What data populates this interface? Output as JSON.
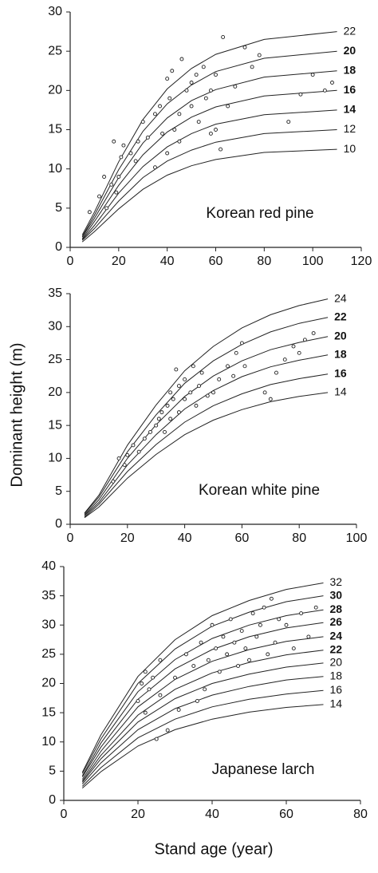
{
  "chart_data": [
    {
      "type": "scatter",
      "annotation": "Korean red pine",
      "xlim": [
        0,
        120
      ],
      "xticks": [
        0,
        20,
        40,
        60,
        80,
        100,
        120
      ],
      "ylim": [
        0,
        30
      ],
      "yticks": [
        0,
        5,
        10,
        15,
        20,
        25,
        30
      ],
      "points": {
        "x": [
          8,
          12,
          14,
          15,
          17,
          18,
          19,
          20,
          21,
          22,
          25,
          28,
          30,
          32,
          35,
          37,
          38,
          40,
          41,
          42,
          43,
          45,
          46,
          48,
          50,
          50,
          52,
          53,
          55,
          56,
          58,
          60,
          60,
          62,
          63,
          65,
          68,
          72,
          75,
          78,
          90,
          95,
          100,
          105,
          108,
          58,
          45,
          40,
          35,
          27
        ],
        "y": [
          4.5,
          6.5,
          9,
          5,
          8,
          13.5,
          7,
          9,
          11.5,
          13,
          12,
          13.5,
          16,
          14,
          17,
          18,
          14.5,
          21.5,
          19,
          22.5,
          15,
          17,
          24,
          20,
          21,
          18,
          22,
          16,
          23,
          19,
          20,
          22,
          15,
          12.5,
          26.8,
          18,
          20.5,
          25.5,
          23,
          24.5,
          16,
          19.5,
          22,
          20,
          21,
          14.5,
          13.5,
          12,
          10.2,
          11
        ]
      },
      "curve_x": [
        5,
        10,
        20,
        30,
        40,
        50,
        60,
        80,
        110
      ],
      "curves": [
        {
          "name": "22",
          "bold": false,
          "values": [
            1.6,
            4.5,
            10.9,
            16.3,
            20.2,
            22.8,
            24.6,
            26.5,
            27.5
          ]
        },
        {
          "name": "20",
          "bold": true,
          "values": [
            1.4,
            4.1,
            9.9,
            14.8,
            18.3,
            20.7,
            22.4,
            24.1,
            25
          ]
        },
        {
          "name": "18",
          "bold": true,
          "values": [
            1.3,
            3.7,
            8.9,
            13.3,
            16.5,
            18.7,
            20.1,
            21.7,
            22.5
          ]
        },
        {
          "name": "16",
          "bold": true,
          "values": [
            1.1,
            3.3,
            7.9,
            11.8,
            14.7,
            16.6,
            17.9,
            19.3,
            20
          ]
        },
        {
          "name": "14",
          "bold": true,
          "values": [
            1.0,
            2.8,
            6.9,
            10.3,
            12.8,
            14.5,
            15.7,
            16.9,
            17.5
          ]
        },
        {
          "name": "12",
          "bold": false,
          "values": [
            0.9,
            2.4,
            5.9,
            8.9,
            11.0,
            12.4,
            13.4,
            14.5,
            15
          ]
        },
        {
          "name": "10",
          "bold": false,
          "values": [
            0.7,
            2.0,
            4.9,
            7.4,
            9.2,
            10.4,
            11.2,
            12.1,
            12.5
          ]
        }
      ]
    },
    {
      "type": "scatter",
      "annotation": "Korean white pine",
      "y_label": "Dominant height (m)",
      "xlim": [
        0,
        100
      ],
      "xticks": [
        0,
        20,
        40,
        60,
        80,
        100
      ],
      "ylim": [
        0,
        35
      ],
      "yticks": [
        0,
        5,
        10,
        15,
        20,
        25,
        30,
        35
      ],
      "points": {
        "x": [
          15,
          17,
          19,
          20,
          22,
          24,
          26,
          28,
          30,
          31,
          32,
          33,
          34,
          35,
          35,
          36,
          37,
          38,
          38,
          40,
          40,
          42,
          43,
          44,
          45,
          46,
          48,
          50,
          52,
          55,
          57,
          58,
          60,
          61,
          68,
          70,
          72,
          75,
          78,
          80,
          82,
          85
        ],
        "y": [
          6.5,
          10,
          9,
          10.5,
          12,
          11,
          13,
          14,
          15,
          16,
          17,
          14,
          18,
          16,
          20,
          19,
          23.5,
          17,
          21,
          19,
          22,
          20,
          24,
          18,
          21,
          23,
          19.5,
          20,
          22,
          24,
          22.5,
          26,
          27.5,
          24,
          20,
          19,
          23,
          25,
          27,
          26,
          28,
          29
        ]
      },
      "curve_x": [
        5,
        10,
        20,
        30,
        40,
        50,
        60,
        70,
        80,
        90
      ],
      "curves": [
        {
          "name": "24",
          "bold": false,
          "values": [
            1.7,
            4.4,
            12.0,
            18.1,
            23.3,
            27.0,
            29.8,
            31.8,
            33.2,
            34.2
          ]
        },
        {
          "name": "22",
          "bold": true,
          "values": [
            1.6,
            4.1,
            11.0,
            16.6,
            21.4,
            24.8,
            27.3,
            29.2,
            30.5,
            31.4
          ]
        },
        {
          "name": "20",
          "bold": true,
          "values": [
            1.4,
            3.7,
            10.0,
            15.1,
            19.4,
            22.5,
            24.8,
            26.5,
            27.6,
            28.5
          ]
        },
        {
          "name": "18",
          "bold": true,
          "values": [
            1.3,
            3.3,
            9.0,
            13.6,
            17.5,
            20.3,
            22.4,
            23.9,
            24.9,
            25.7
          ]
        },
        {
          "name": "16",
          "bold": true,
          "values": [
            1.1,
            3.0,
            8.0,
            12.1,
            15.5,
            18.0,
            19.8,
            21.2,
            22.1,
            22.8
          ]
        },
        {
          "name": "14",
          "bold": false,
          "values": [
            1.0,
            2.6,
            7.0,
            10.6,
            13.6,
            15.8,
            17.4,
            18.6,
            19.4,
            20
          ]
        }
      ]
    },
    {
      "type": "scatter",
      "annotation": "Japanese larch",
      "x_label": "Stand age (year)",
      "xlim": [
        0,
        80
      ],
      "xticks": [
        0,
        20,
        40,
        60,
        80
      ],
      "ylim": [
        0,
        40
      ],
      "yticks": [
        0,
        5,
        10,
        15,
        20,
        25,
        30,
        35,
        40
      ],
      "points": {
        "x": [
          20,
          21,
          22,
          22,
          23,
          24,
          25,
          26,
          26,
          28,
          30,
          31,
          33,
          35,
          36,
          37,
          38,
          39,
          40,
          41,
          42,
          43,
          44,
          45,
          46,
          47,
          48,
          49,
          50,
          51,
          52,
          53,
          54,
          55,
          56,
          57,
          58,
          60,
          62,
          64,
          66,
          68
        ],
        "y": [
          17,
          20,
          15,
          22,
          19,
          21,
          10.5,
          18,
          24,
          12,
          21,
          15.5,
          25,
          23,
          17,
          27,
          19,
          24,
          30,
          26,
          22,
          28,
          25,
          31,
          27,
          23,
          29,
          26,
          24,
          32,
          28,
          30,
          33,
          25,
          34.5,
          27,
          31,
          30,
          26,
          32,
          28,
          33
        ]
      },
      "curve_x": [
        5,
        10,
        20,
        30,
        40,
        50,
        60,
        70
      ],
      "curves": [
        {
          "name": "32",
          "bold": false,
          "values": [
            4.8,
            11.2,
            21.2,
            27.5,
            31.6,
            34.2,
            36.1,
            37.2
          ]
        },
        {
          "name": "30",
          "bold": true,
          "values": [
            4.6,
            10.5,
            20.0,
            25.9,
            29.8,
            32.2,
            34.0,
            35
          ]
        },
        {
          "name": "28",
          "bold": true,
          "values": [
            4.2,
            9.8,
            18.6,
            24.1,
            27.7,
            30.0,
            31.6,
            32.6
          ]
        },
        {
          "name": "26",
          "bold": true,
          "values": [
            4.0,
            9.1,
            17.3,
            22.5,
            25.8,
            28.0,
            29.5,
            30.4
          ]
        },
        {
          "name": "24",
          "bold": true,
          "values": [
            3.6,
            8.4,
            16.0,
            20.7,
            23.8,
            25.8,
            27.2,
            28
          ]
        },
        {
          "name": "22",
          "bold": true,
          "values": [
            3.3,
            7.7,
            14.6,
            19.0,
            21.8,
            23.6,
            24.9,
            25.7
          ]
        },
        {
          "name": "20",
          "bold": false,
          "values": [
            3.1,
            7.1,
            13.4,
            17.4,
            20.0,
            21.6,
            22.8,
            23.5
          ]
        },
        {
          "name": "18",
          "bold": false,
          "values": [
            2.8,
            6.4,
            12.1,
            15.7,
            18.0,
            19.5,
            20.6,
            21.2
          ]
        },
        {
          "name": "16",
          "bold": false,
          "values": [
            2.4,
            5.6,
            10.7,
            13.9,
            16.0,
            17.3,
            18.2,
            18.8
          ]
        },
        {
          "name": "14",
          "bold": false,
          "values": [
            2.1,
            4.9,
            9.3,
            12.1,
            13.9,
            15.1,
            15.9,
            16.4
          ]
        }
      ]
    }
  ]
}
